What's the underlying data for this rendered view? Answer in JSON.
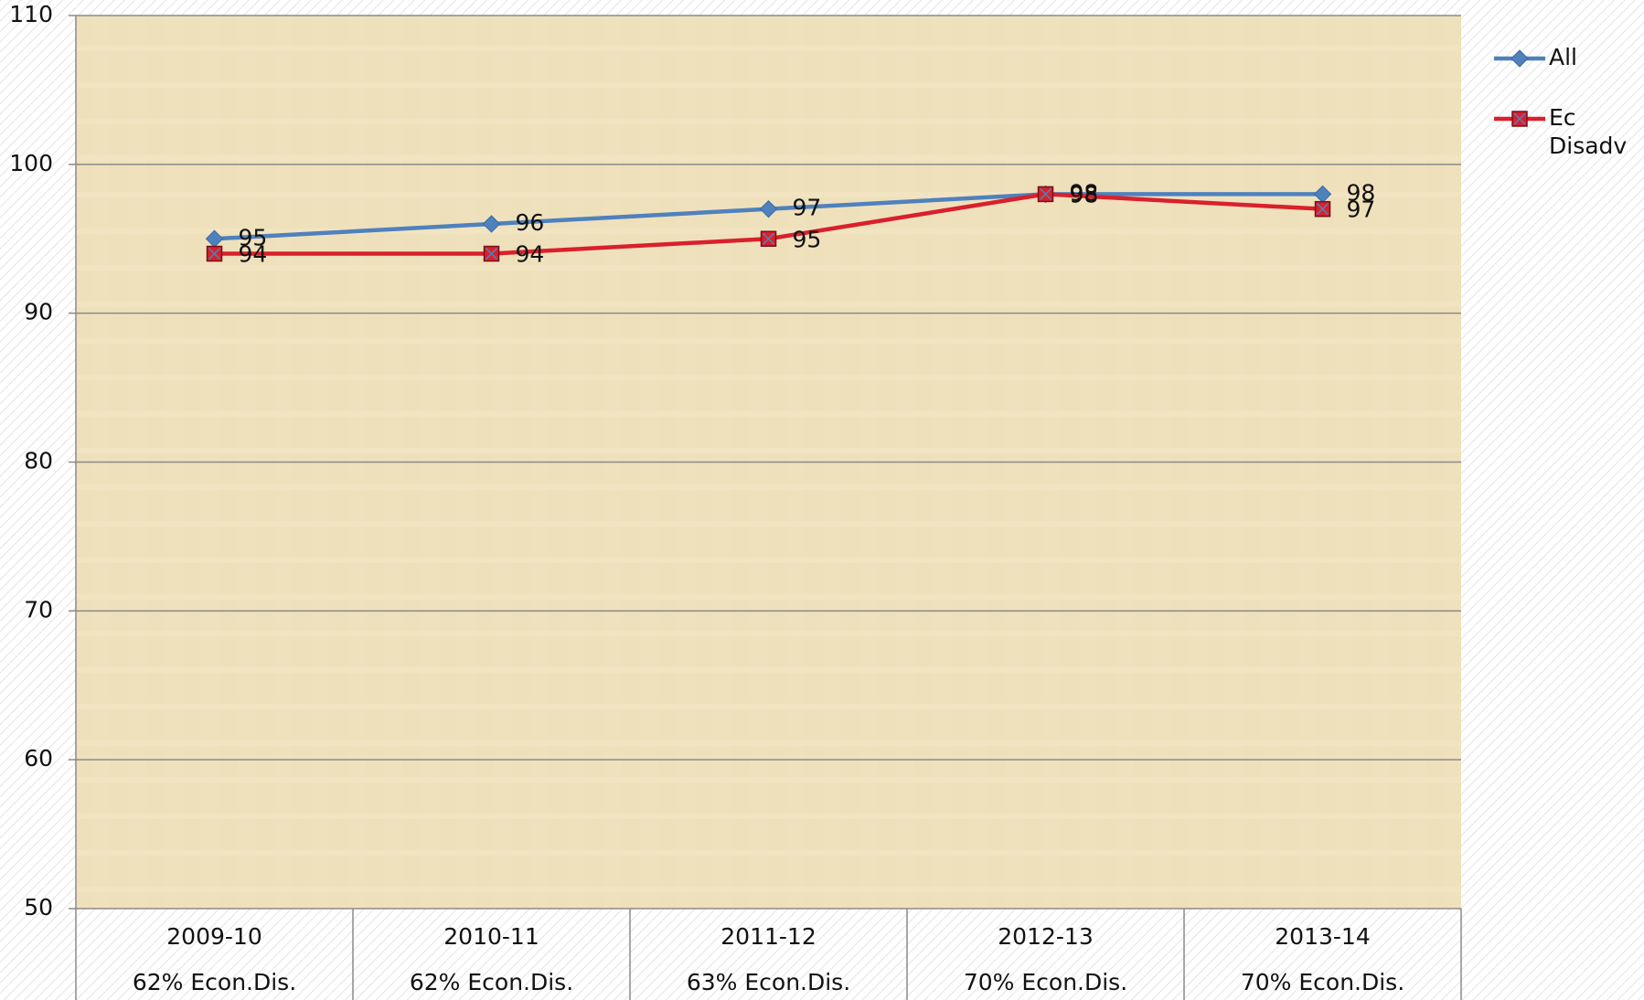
{
  "chart_data": {
    "type": "line",
    "categories": [
      "2009-10",
      "2010-11",
      "2011-12",
      "2012-13",
      "2013-14"
    ],
    "category_notes": [
      "62% Econ.Dis.",
      "62% Econ.Dis.",
      "63% Econ.Dis.",
      "70% Econ.Dis.",
      "70% Econ.Dis."
    ],
    "series": [
      {
        "name": "All",
        "color": "#4f81bd",
        "marker": "diamond",
        "values": [
          95,
          96,
          97,
          98,
          98
        ]
      },
      {
        "name": "Ec Disadv",
        "color": "#d9202b",
        "marker": "square",
        "values": [
          94,
          94,
          95,
          98,
          97
        ]
      }
    ],
    "ylim": [
      50,
      110
    ],
    "yticks": [
      50,
      60,
      70,
      80,
      90,
      100,
      110
    ],
    "grid": true,
    "legend": "right"
  }
}
